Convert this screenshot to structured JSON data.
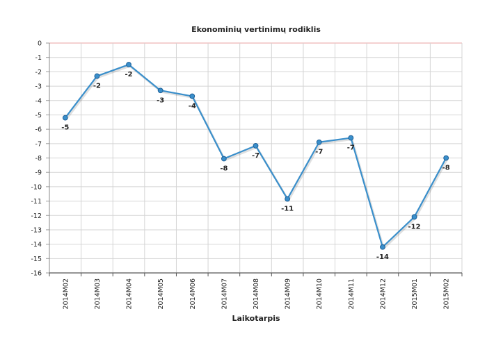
{
  "chart_data": {
    "type": "line",
    "title": "Ekonominių vertinimų rodiklis",
    "xlabel": "Laikotarpis",
    "ylabel": "",
    "categories": [
      "2014M02",
      "2014M03",
      "2014M04",
      "2014M05",
      "2014M06",
      "2014M07",
      "2014M08",
      "2014M09",
      "2014M10",
      "2014M11",
      "2014M12",
      "2015M01",
      "2015M02"
    ],
    "series": [
      {
        "values": [
          -5.2,
          -2.3,
          -1.5,
          -3.3,
          -3.7,
          -8.05,
          -7.15,
          -10.85,
          -6.9,
          -6.6,
          -14.2,
          -12.1,
          -8.0
        ],
        "labels": [
          "-5",
          "-2",
          "-2",
          "-3",
          "-4",
          "-8",
          "-7",
          "-11",
          "-7",
          "-7",
          "-14",
          "-12",
          "-8"
        ]
      }
    ],
    "ylim": [
      -16,
      0
    ],
    "yticks": [
      "0",
      "-1",
      "-2",
      "-3",
      "-4",
      "-5",
      "-6",
      "-7",
      "-8",
      "-9",
      "-10",
      "-11",
      "-12",
      "-13",
      "-14",
      "-15",
      "-16"
    ],
    "grid": true,
    "colors": {
      "line": "#3a8fcb",
      "marker_stroke": "#1d5f97",
      "grid": "#d4d4d4",
      "zero_line": "#e8a0a0",
      "band": "#f7f7f7"
    }
  }
}
